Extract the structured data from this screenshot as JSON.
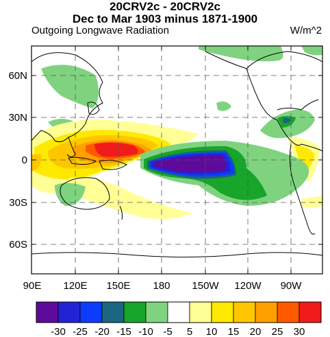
{
  "title_line1": "20CRV2c - 20CRV2c",
  "title_line2": "Dec to Mar 1903 minus 1871-1900",
  "variable": "Outgoing Longwave Radiation",
  "units": "W/m^2",
  "lat_labels": [
    "60N",
    "30N",
    "0",
    "30S",
    "60S"
  ],
  "lon_labels": [
    "90E",
    "120E",
    "150E",
    "180",
    "150W",
    "120W",
    "90W"
  ],
  "colorbar": {
    "colors": [
      "#5e0a9c",
      "#2323d6",
      "#0c3dff",
      "#1a6680",
      "#17a52a",
      "#7fd37f",
      "#ffffff",
      "#ffff95",
      "#ffe900",
      "#ffc600",
      "#ff9f00",
      "#ff5a00",
      "#f01b1b"
    ],
    "labels": [
      "-30",
      "-25",
      "-20",
      "-15",
      "-10",
      "-5",
      "5",
      "10",
      "15",
      "20",
      "25",
      "30"
    ]
  }
}
